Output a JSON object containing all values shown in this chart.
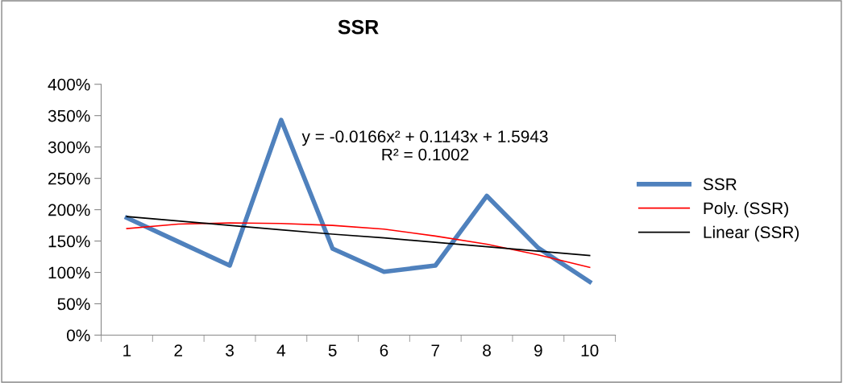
{
  "chart_data": {
    "type": "line",
    "title": "SSR",
    "categories": [
      "1",
      "2",
      "3",
      "4",
      "5",
      "6",
      "7",
      "8",
      "9",
      "10"
    ],
    "series": [
      {
        "name": "SSR",
        "color": "#4f81bd",
        "values": [
          187,
          149,
          111,
          343,
          138,
          101,
          111,
          222,
          139,
          85
        ]
      },
      {
        "name": "Poly. (SSR)",
        "color": "#ff0000",
        "values": [
          170,
          177,
          179,
          178,
          175,
          169,
          158,
          145,
          128,
          108
        ]
      },
      {
        "name": "Linear (SSR)",
        "color": "#000000",
        "values": [
          189,
          182,
          175,
          168,
          161,
          155,
          148,
          141,
          134,
          127
        ]
      }
    ],
    "ylim": [
      0,
      400
    ],
    "yticks": [
      {
        "value": 0,
        "label": "0%"
      },
      {
        "value": 50,
        "label": "50%"
      },
      {
        "value": 100,
        "label": "100%"
      },
      {
        "value": 150,
        "label": "150%"
      },
      {
        "value": 200,
        "label": "200%"
      },
      {
        "value": 250,
        "label": "250%"
      },
      {
        "value": 300,
        "label": "300%"
      },
      {
        "value": 350,
        "label": "350%"
      },
      {
        "value": 400,
        "label": "400%"
      }
    ],
    "annotations": [
      "y = -0.0166x² + 0.1143x + 1.5943\nR² = 0.1002"
    ],
    "legend": "right",
    "grid": false,
    "marker": "none",
    "line_style": "solid"
  }
}
